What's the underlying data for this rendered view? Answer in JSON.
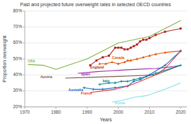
{
  "chart_data": {
    "type": "line",
    "title": "Past and projected future overweight rates in selected OECD countries",
    "x_label": "Years",
    "y_label": "Proportion overweight",
    "xlim": [
      1970,
      2022
    ],
    "ylim": [
      20,
      80
    ],
    "xticks": [
      1970,
      1980,
      1990,
      2000,
      2010,
      2020
    ],
    "yticks": [
      {
        "value": 20,
        "label": "20%"
      },
      {
        "value": 30,
        "label": "30%"
      },
      {
        "value": 40,
        "label": "40%"
      },
      {
        "value": 50,
        "label": "50%"
      },
      {
        "value": 60,
        "label": "60%"
      },
      {
        "value": 70,
        "label": "70%"
      },
      {
        "value": 80,
        "label": "80%"
      }
    ],
    "grid": true,
    "series": [
      {
        "name": "USA",
        "color": "#7cb342",
        "label_x": 1971,
        "label_y": 47.5,
        "x": [
          1971,
          1976,
          1980,
          1990,
          2000,
          2010,
          2020
        ],
        "values": [
          46.5,
          46.0,
          43.5,
          50.0,
          60.0,
          64.0,
          74.0
        ]
      },
      {
        "name": "England",
        "color": "#b71c1c",
        "marker": "square",
        "label_x": 1991,
        "label_y": 43.5,
        "x": [
          1991,
          1993,
          1995,
          1997,
          1999,
          2000,
          2001,
          2002,
          2003,
          2004,
          2005,
          2006,
          2007,
          2008,
          2009,
          2010,
          2012,
          2015,
          2020
        ],
        "values": [
          46,
          49,
          51,
          52,
          57,
          57,
          57,
          56,
          56,
          57,
          58,
          59,
          61,
          62,
          62,
          63,
          65,
          67,
          69
        ]
      },
      {
        "name": "Canada",
        "color": "#e65100",
        "marker": "triangle",
        "label_x": 1998,
        "label_y": 49.5,
        "x": [
          1994,
          1996,
          1998,
          2000,
          2002,
          2003,
          2004,
          2006,
          2008,
          2010,
          2012,
          2015,
          2020
        ],
        "values": [
          47,
          47,
          48,
          47,
          48,
          49,
          49,
          50,
          51,
          52,
          53,
          54,
          55
        ]
      },
      {
        "name": "Spain",
        "color": "#9c27b0",
        "label_x": 1988,
        "label_y": 39.5,
        "x": [
          1987,
          1993,
          1997,
          2001,
          2006,
          2012,
          2017,
          2020
        ],
        "values": [
          41,
          42,
          42.5,
          43,
          43.5,
          44,
          45,
          46
        ]
      },
      {
        "name": "Austria",
        "color": "#795548",
        "label_x": 1975,
        "label_y": 37.5,
        "x": [
          1983,
          1991,
          1999,
          2006,
          2012,
          2020
        ],
        "values": [
          38,
          38.5,
          39,
          39.5,
          40,
          46
        ]
      },
      {
        "name": "Australia",
        "color": "#1565c0",
        "marker": "plus",
        "label_x": 1984,
        "label_y": 29.5,
        "x": [
          1989,
          1992,
          1995,
          1999,
          2003,
          2005,
          2007,
          2010,
          2015,
          2020
        ],
        "values": [
          32,
          31,
          31,
          32,
          33,
          36,
          37,
          40,
          46,
          55
        ]
      },
      {
        "name": "France",
        "color": "#e53935",
        "label_x": 1988,
        "label_y": 27.5,
        "x": [
          1991,
          1995,
          1999,
          2003,
          2007,
          2012,
          2015,
          2020
        ],
        "values": [
          29,
          30,
          31,
          33,
          36,
          40,
          44,
          55
        ]
      },
      {
        "name": "Italy",
        "color": "#00838f",
        "marker": "plus",
        "label_x": 1995,
        "label_y": 35.0,
        "x": [
          1994,
          1997,
          1999,
          2001,
          2003,
          2005,
          2007,
          2009,
          2012,
          2020
        ],
        "values": [
          34,
          35,
          35,
          36,
          36,
          37,
          38,
          39,
          41,
          46
        ]
      },
      {
        "name": "Korea",
        "color": "#80deea",
        "label_x": 1999,
        "label_y": 21.5,
        "x": [
          1998,
          2001,
          2005,
          2009,
          2012,
          2015,
          2020
        ],
        "values": [
          23,
          24,
          26,
          27,
          29,
          31,
          35
        ]
      }
    ]
  }
}
